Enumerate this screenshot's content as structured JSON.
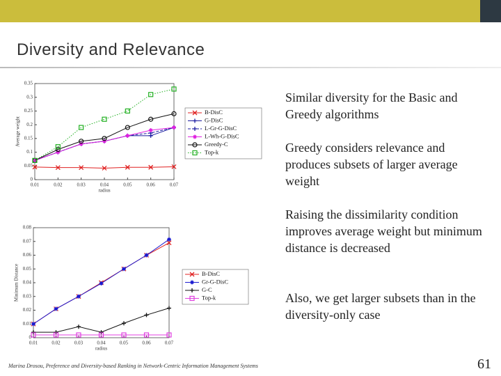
{
  "slide": {
    "title": "Diversity and Relevance",
    "bullets": [
      "Similar diversity for the Basic and Greedy algorithms",
      "Greedy considers relevance and produces subsets of larger average weight",
      "Raising the dissimilarity condition improves average weight but minimum distance is decreased",
      "Also, we get larger subsets than in the diversity-only case"
    ],
    "footer": "Marina Drosou, Preference and Diversity-based Ranking in Network-Centric Information Management Systems",
    "page_number": "61"
  },
  "chart_data": [
    {
      "type": "line",
      "xlabel": "radius",
      "ylabel": "Average weight",
      "x": [
        0.01,
        0.02,
        0.03,
        0.04,
        0.05,
        0.06,
        0.07
      ],
      "xlim": [
        0.01,
        0.07
      ],
      "xticks": [
        0.01,
        0.02,
        0.03,
        0.04,
        0.05,
        0.06,
        0.07
      ],
      "ylim": [
        0,
        0.35
      ],
      "yticks": [
        0,
        0.05,
        0.1,
        0.15,
        0.2,
        0.25,
        0.3,
        0.35
      ],
      "series": [
        {
          "name": "B-DisC",
          "color": "#e02020",
          "marker": "x",
          "dash": "solid",
          "values": [
            0.046,
            0.044,
            0.044,
            0.042,
            0.045,
            0.045,
            0.047
          ]
        },
        {
          "name": "G-DisC",
          "color": "#1a1aa0",
          "marker": "plus",
          "dash": "solid",
          "values": [
            0.07,
            0.1,
            0.13,
            0.14,
            0.16,
            0.16,
            0.19
          ]
        },
        {
          "name": "L-Gr-G-DisC",
          "color": "#1a1aa0",
          "marker": "plus",
          "dash": "dashed",
          "values": [
            0.07,
            0.1,
            0.13,
            0.14,
            0.16,
            0.17,
            0.19
          ]
        },
        {
          "name": "L-Wh-G-DisC",
          "color": "#e020e0",
          "marker": "star",
          "dash": "solid",
          "values": [
            0.07,
            0.1,
            0.13,
            0.14,
            0.16,
            0.18,
            0.19
          ]
        },
        {
          "name": "Greedy-C",
          "color": "#111111",
          "marker": "circle",
          "dash": "solid",
          "values": [
            0.07,
            0.11,
            0.14,
            0.15,
            0.19,
            0.22,
            0.24
          ]
        },
        {
          "name": "Top-k",
          "color": "#22b022",
          "marker": "square",
          "dash": "dotted",
          "values": [
            0.07,
            0.12,
            0.19,
            0.22,
            0.25,
            0.31,
            0.33
          ]
        }
      ]
    },
    {
      "type": "line",
      "xlabel": "radius",
      "ylabel": "Minimum Distance",
      "x": [
        0.01,
        0.02,
        0.03,
        0.04,
        0.05,
        0.06,
        0.07
      ],
      "xlim": [
        0.01,
        0.07
      ],
      "xticks": [
        0.01,
        0.02,
        0.03,
        0.04,
        0.05,
        0.06,
        0.07
      ],
      "ylim": [
        0,
        0.08
      ],
      "yticks": [
        0,
        0.01,
        0.02,
        0.03,
        0.04,
        0.05,
        0.06,
        0.07,
        0.08
      ],
      "series": [
        {
          "name": "B-DisC",
          "color": "#e02020",
          "marker": "x",
          "dash": "solid",
          "values": [
            0.01,
            0.021,
            0.03,
            0.04,
            0.05,
            0.06,
            0.069
          ]
        },
        {
          "name": "Gr-G-DisC",
          "color": "#1a1ad0",
          "marker": "star",
          "dash": "solid",
          "values": [
            0.01,
            0.021,
            0.03,
            0.0395,
            0.05,
            0.06,
            0.0715
          ]
        },
        {
          "name": "G-C",
          "color": "#111111",
          "marker": "plus",
          "dash": "solid",
          "values": [
            0.004,
            0.004,
            0.008,
            0.004,
            0.0105,
            0.0165,
            0.0215
          ]
        },
        {
          "name": "Top-k",
          "color": "#e040e0",
          "marker": "square",
          "dash": "solid",
          "values": [
            0.002,
            0.002,
            0.002,
            0.002,
            0.002,
            0.002,
            0.002
          ]
        }
      ]
    }
  ]
}
